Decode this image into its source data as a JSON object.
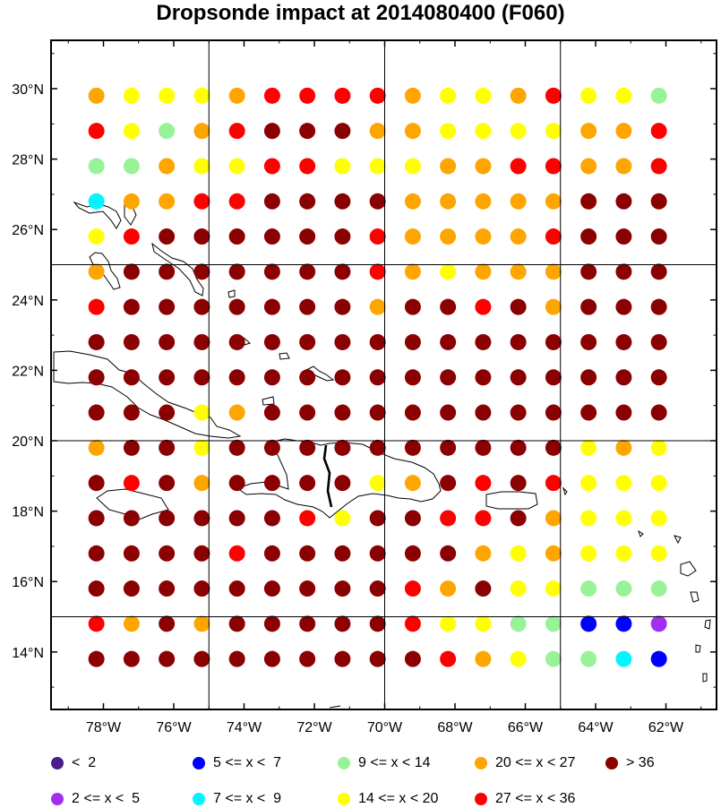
{
  "title": "Dropsonde impact at 2014080400 (F060)",
  "lat_labels": [
    "30°N",
    "28°N",
    "26°N",
    "24°N",
    "22°N",
    "20°N",
    "18°N",
    "16°N",
    "14°N"
  ],
  "lon_labels": [
    "78°W",
    "76°W",
    "74°W",
    "72°W",
    "70°W",
    "68°W",
    "66°W",
    "64°W",
    "62°W"
  ],
  "colors": {
    "lt2": "#4b1d8c",
    "c2_5": "#a02ff0",
    "c5_7": "#0000ff",
    "c7_9": "#00f5ff",
    "c9_14": "#98f398",
    "c14_20": "#ffff00",
    "c20_27": "#ffa500",
    "c27_36": "#ff0000",
    "gt36": "#8b0000"
  },
  "legend": [
    {
      "label": "<  2",
      "color": "lt2"
    },
    {
      "label": "5 <= x <  7",
      "color": "c5_7"
    },
    {
      "label": "9 <= x < 14",
      "color": "c9_14"
    },
    {
      "label": "20 <= x < 27",
      "color": "c20_27"
    },
    {
      "label": "> 36",
      "color": "gt36"
    },
    {
      "label": "2 <= x <  5",
      "color": "c2_5"
    },
    {
      "label": "7 <= x <  9",
      "color": "c7_9"
    },
    {
      "label": "14 <= x < 20",
      "color": "c14_20"
    },
    {
      "label": "27 <= x < 36",
      "color": "c27_36"
    }
  ],
  "grid": {
    "lons": [
      -78.2,
      -77.2,
      -76.2,
      -75.2,
      -74.2,
      -73.2,
      -72.2,
      -71.2,
      -70.2,
      -69.2,
      -68.2,
      -67.2,
      -66.2,
      -65.2,
      -64.2,
      -63.2,
      -62.2
    ],
    "lats": [
      29.8,
      28.8,
      27.8,
      26.8,
      25.8,
      24.8,
      23.8,
      22.8,
      21.8,
      20.8,
      19.8,
      18.8,
      17.8,
      16.8,
      15.8,
      14.8,
      13.8
    ],
    "codes": [
      "OYYYORRRROYYORYYG",
      "RYGORDDDOOYYYYOOR",
      "GGOYYRRYYYOORROOR",
      "COORRDDDDOOOOODDD",
      "YRDDDDDDROOOORDDD",
      "ODDDDDDDROYOOODDD",
      "RDDDDDDDODDRDODDD",
      "DDDDDDDDDDDDDDDDD",
      "DDDDDDDDDDDDDDDDD",
      "DDDYODDDDDDDDDDDD",
      "ODDYDDDDDDDDDDYOY",
      "DRDODDDDYODRDRYYY",
      "DDDDDDRYDDRRDOYYY",
      "DDDDRDDDDDDOYOYYY",
      "DDDDDDDDDRODYYGGG",
      "RODODDDDDRYYGGBBP",
      "DDDDDDDDDDROYGGCB"
    ]
  }
}
